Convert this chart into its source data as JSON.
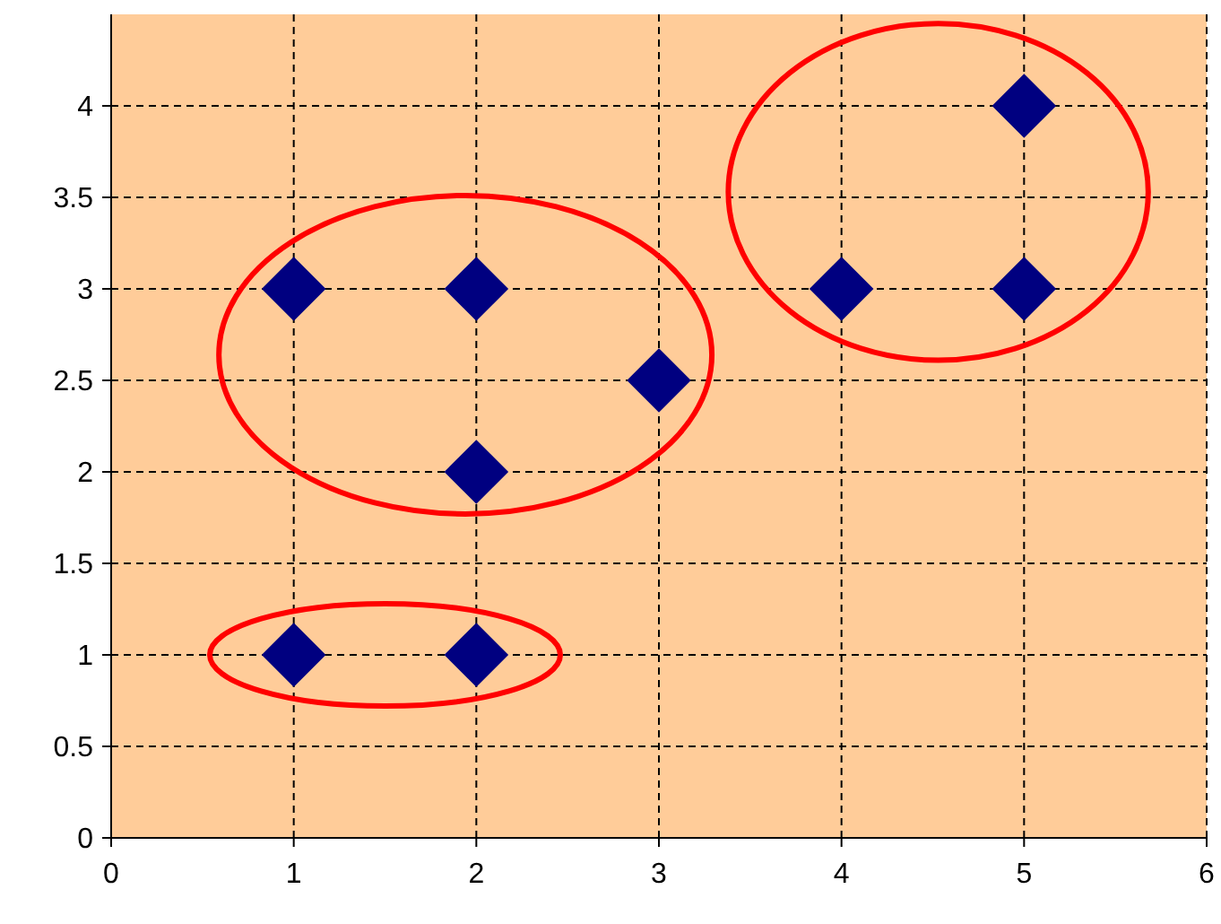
{
  "chart_data": {
    "type": "scatter",
    "xlim": [
      0,
      6
    ],
    "xticks": [
      0,
      1,
      2,
      3,
      4,
      5,
      6
    ],
    "ylim": [
      0,
      4.5
    ],
    "yticks": [
      0,
      0.5,
      1,
      1.5,
      2,
      2.5,
      3,
      3.5,
      4
    ],
    "grid": true,
    "marker": "diamond",
    "series": [
      {
        "color": "#000080",
        "x": [
          1,
          2,
          2,
          1,
          2,
          3,
          4,
          5,
          5
        ],
        "values": [
          1,
          1,
          2,
          3,
          3,
          2.5,
          3,
          3,
          4
        ]
      }
    ]
  }
}
